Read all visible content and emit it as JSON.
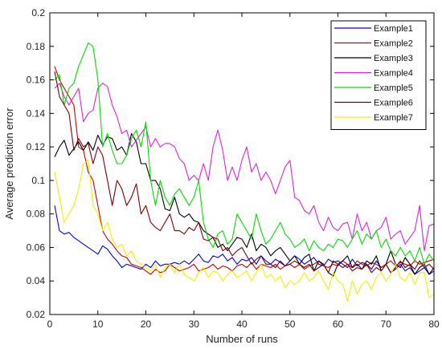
{
  "chart_data": {
    "type": "line",
    "title": "",
    "xlabel": "Number of runs",
    "ylabel": "Average prediction error",
    "xlim": [
      0,
      80
    ],
    "ylim": [
      0.02,
      0.2
    ],
    "xticks": [
      0,
      10,
      20,
      30,
      40,
      50,
      60,
      70,
      80
    ],
    "yticks": [
      0.02,
      0.04,
      0.06,
      0.08,
      0.1,
      0.12,
      0.14,
      0.16,
      0.18,
      0.2
    ],
    "grid": false,
    "legend_position": "top-right",
    "x": [
      1,
      2,
      3,
      4,
      5,
      6,
      7,
      8,
      9,
      10,
      11,
      12,
      13,
      14,
      15,
      16,
      17,
      18,
      19,
      20,
      21,
      22,
      23,
      24,
      25,
      26,
      27,
      28,
      29,
      30,
      31,
      32,
      33,
      34,
      35,
      36,
      37,
      38,
      39,
      40,
      41,
      42,
      43,
      44,
      45,
      46,
      47,
      48,
      49,
      50,
      51,
      52,
      53,
      54,
      55,
      56,
      57,
      58,
      59,
      60,
      61,
      62,
      63,
      64,
      65,
      66,
      67,
      68,
      69,
      70,
      71,
      72,
      73,
      74,
      75,
      76,
      77,
      78,
      79,
      80
    ],
    "series": [
      {
        "name": "Example1",
        "color": "#0000ff",
        "values": [
          0.085,
          0.07,
          0.068,
          0.069,
          0.066,
          0.064,
          0.062,
          0.06,
          0.058,
          0.056,
          0.061,
          0.059,
          0.055,
          0.052,
          0.048,
          0.05,
          0.049,
          0.048,
          0.047,
          0.05,
          0.048,
          0.052,
          0.049,
          0.05,
          0.05,
          0.051,
          0.05,
          0.052,
          0.05,
          0.053,
          0.056,
          0.052,
          0.051,
          0.055,
          0.054,
          0.056,
          0.052,
          0.054,
          0.05,
          0.053,
          0.052,
          0.054,
          0.05,
          0.055,
          0.052,
          0.05,
          0.053,
          0.051,
          0.049,
          0.052,
          0.055,
          0.053,
          0.05,
          0.052,
          0.054,
          0.05,
          0.049,
          0.053,
          0.051,
          0.052,
          0.05,
          0.048,
          0.053,
          0.049,
          0.051,
          0.05,
          0.047,
          0.052,
          0.048,
          0.05,
          0.045,
          0.047,
          0.05,
          0.046,
          0.048,
          0.044,
          0.046,
          0.048,
          0.044,
          0.046
        ]
      },
      {
        "name": "Example2",
        "color": "#cc0000",
        "values": [
          0.168,
          0.16,
          0.155,
          0.15,
          0.145,
          0.12,
          0.118,
          0.105,
          0.1,
          0.085,
          0.07,
          0.065,
          0.062,
          0.058,
          0.055,
          0.054,
          0.05,
          0.049,
          0.048,
          0.046,
          0.044,
          0.047,
          0.045,
          0.046,
          0.05,
          0.048,
          0.046,
          0.047,
          0.048,
          0.05,
          0.046,
          0.047,
          0.048,
          0.05,
          0.047,
          0.049,
          0.048,
          0.046,
          0.049,
          0.05,
          0.048,
          0.051,
          0.047,
          0.05,
          0.049,
          0.048,
          0.05,
          0.047,
          0.049,
          0.05,
          0.048,
          0.05,
          0.047,
          0.049,
          0.05,
          0.052,
          0.049,
          0.048,
          0.05,
          0.049,
          0.052,
          0.05,
          0.048,
          0.052,
          0.05,
          0.049,
          0.051,
          0.05,
          0.048,
          0.05,
          0.052,
          0.049,
          0.051,
          0.05,
          0.049,
          0.052,
          0.05,
          0.051,
          0.052,
          0.053
        ]
      },
      {
        "name": "Example3",
        "color": "#000000",
        "values": [
          0.114,
          0.12,
          0.124,
          0.115,
          0.119,
          0.123,
          0.118,
          0.123,
          0.118,
          0.127,
          0.121,
          0.126,
          0.125,
          0.118,
          0.12,
          0.115,
          0.128,
          0.123,
          0.11,
          0.11,
          0.1,
          0.1,
          0.095,
          0.083,
          0.082,
          0.09,
          0.08,
          0.078,
          0.08,
          0.076,
          0.075,
          0.07,
          0.068,
          0.066,
          0.06,
          0.062,
          0.058,
          0.062,
          0.066,
          0.065,
          0.06,
          0.068,
          0.058,
          0.062,
          0.06,
          0.055,
          0.058,
          0.06,
          0.056,
          0.052,
          0.055,
          0.05,
          0.054,
          0.056,
          0.046,
          0.052,
          0.05,
          0.045,
          0.043,
          0.05,
          0.052,
          0.055,
          0.048,
          0.05,
          0.047,
          0.052,
          0.05,
          0.055,
          0.046,
          0.05,
          0.058,
          0.05,
          0.048,
          0.054,
          0.05,
          0.044,
          0.048,
          0.05,
          0.044,
          0.048
        ]
      },
      {
        "name": "Example4",
        "color": "#e020e0",
        "values": [
          0.155,
          0.158,
          0.15,
          0.145,
          0.15,
          0.155,
          0.135,
          0.14,
          0.142,
          0.155,
          0.158,
          0.156,
          0.145,
          0.138,
          0.128,
          0.13,
          0.12,
          0.124,
          0.128,
          0.132,
          0.12,
          0.125,
          0.12,
          0.122,
          0.122,
          0.12,
          0.113,
          0.11,
          0.1,
          0.103,
          0.1,
          0.11,
          0.1,
          0.12,
          0.13,
          0.118,
          0.1,
          0.108,
          0.1,
          0.112,
          0.12,
          0.105,
          0.11,
          0.1,
          0.105,
          0.1,
          0.092,
          0.1,
          0.108,
          0.112,
          0.09,
          0.088,
          0.082,
          0.08,
          0.085,
          0.075,
          0.07,
          0.078,
          0.072,
          0.07,
          0.074,
          0.075,
          0.065,
          0.08,
          0.07,
          0.075,
          0.065,
          0.07,
          0.072,
          0.078,
          0.065,
          0.068,
          0.07,
          0.062,
          0.066,
          0.07,
          0.085,
          0.058,
          0.073,
          0.074
        ]
      },
      {
        "name": "Example5",
        "color": "#00dd00",
        "values": [
          0.16,
          0.163,
          0.145,
          0.155,
          0.158,
          0.168,
          0.175,
          0.182,
          0.18,
          0.16,
          0.12,
          0.128,
          0.118,
          0.11,
          0.11,
          0.115,
          0.125,
          0.13,
          0.12,
          0.135,
          0.1,
          0.085,
          0.1,
          0.09,
          0.085,
          0.092,
          0.095,
          0.09,
          0.085,
          0.09,
          0.1,
          0.075,
          0.065,
          0.06,
          0.068,
          0.07,
          0.062,
          0.065,
          0.08,
          0.075,
          0.07,
          0.065,
          0.08,
          0.07,
          0.062,
          0.065,
          0.07,
          0.075,
          0.068,
          0.065,
          0.06,
          0.062,
          0.065,
          0.058,
          0.064,
          0.06,
          0.058,
          0.062,
          0.06,
          0.065,
          0.064,
          0.06,
          0.065,
          0.07,
          0.062,
          0.068,
          0.065,
          0.07,
          0.06,
          0.065,
          0.058,
          0.055,
          0.06,
          0.055,
          0.058,
          0.052,
          0.06,
          0.05,
          0.056,
          0.052
        ]
      },
      {
        "name": "Example6",
        "color": "#800000",
        "values": [
          0.165,
          0.15,
          0.145,
          0.14,
          0.118,
          0.125,
          0.12,
          0.122,
          0.11,
          0.12,
          0.115,
          0.1,
          0.085,
          0.1,
          0.095,
          0.085,
          0.09,
          0.098,
          0.08,
          0.085,
          0.075,
          0.072,
          0.07,
          0.075,
          0.08,
          0.07,
          0.07,
          0.068,
          0.072,
          0.07,
          0.075,
          0.065,
          0.064,
          0.066,
          0.065,
          0.058,
          0.06,
          0.055,
          0.058,
          0.06,
          0.055,
          0.05,
          0.053,
          0.055,
          0.05,
          0.05,
          0.048,
          0.052,
          0.049,
          0.05,
          0.052,
          0.05,
          0.048,
          0.05,
          0.046,
          0.048,
          0.05,
          0.045,
          0.052,
          0.05,
          0.048,
          0.05,
          0.046,
          0.048,
          0.047,
          0.05,
          0.045,
          0.048,
          0.046,
          0.05,
          0.045,
          0.048,
          0.052,
          0.048,
          0.05,
          0.047,
          0.052,
          0.048,
          0.05,
          0.047
        ]
      },
      {
        "name": "Example7",
        "color": "#f0f000",
        "values": [
          0.105,
          0.09,
          0.075,
          0.08,
          0.085,
          0.095,
          0.11,
          0.112,
          0.085,
          0.08,
          0.07,
          0.075,
          0.065,
          0.06,
          0.062,
          0.055,
          0.058,
          0.052,
          0.05,
          0.048,
          0.046,
          0.05,
          0.042,
          0.048,
          0.05,
          0.045,
          0.05,
          0.044,
          0.042,
          0.04,
          0.045,
          0.048,
          0.042,
          0.046,
          0.045,
          0.04,
          0.044,
          0.046,
          0.042,
          0.044,
          0.046,
          0.04,
          0.045,
          0.05,
          0.042,
          0.044,
          0.04,
          0.043,
          0.036,
          0.04,
          0.038,
          0.04,
          0.045,
          0.04,
          0.042,
          0.046,
          0.04,
          0.035,
          0.045,
          0.04,
          0.038,
          0.028,
          0.04,
          0.032,
          0.038,
          0.04,
          0.035,
          0.042,
          0.045,
          0.04,
          0.044,
          0.05,
          0.042,
          0.04,
          0.045,
          0.038,
          0.045,
          0.045,
          0.03,
          0.032
        ]
      }
    ]
  }
}
